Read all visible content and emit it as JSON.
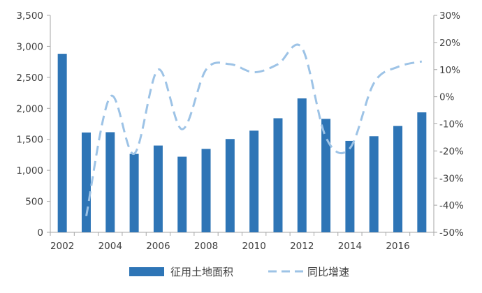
{
  "chart_data": {
    "type": "bar",
    "title": "",
    "categories": [
      "2002",
      "2003",
      "2004",
      "2005",
      "2006",
      "2007",
      "2008",
      "2009",
      "2010",
      "2011",
      "2012",
      "2013",
      "2014",
      "2015",
      "2016",
      "2017"
    ],
    "x_tick_labels": [
      "2002",
      "2004",
      "2006",
      "2008",
      "2010",
      "2012",
      "2014",
      "2016"
    ],
    "series": [
      {
        "name": "征用土地面积",
        "type": "bar",
        "axis": "left",
        "color": "#2e75b6",
        "values": [
          2880,
          1610,
          1615,
          1265,
          1400,
          1220,
          1345,
          1505,
          1640,
          1840,
          2160,
          1830,
          1475,
          1550,
          1715,
          1935
        ]
      },
      {
        "name": "同比增速",
        "type": "line",
        "line_style": "dashed",
        "axis": "right",
        "color": "#9dc3e6",
        "values": [
          null,
          -44,
          0,
          -21,
          10,
          -12,
          10,
          12,
          9,
          12,
          18,
          -15,
          -19,
          5,
          11,
          13
        ]
      }
    ],
    "y_left": {
      "min": 0,
      "max": 3500,
      "step": 500,
      "tick_labels": [
        "0",
        "500",
        "1,000",
        "1,500",
        "2,000",
        "2,500",
        "3,000",
        "3,500"
      ]
    },
    "y_right": {
      "min": -50,
      "max": 30,
      "step": 10,
      "tick_labels": [
        "-50%",
        "-40%",
        "-30%",
        "-20%",
        "-10%",
        "0%",
        "10%",
        "20%",
        "30%"
      ]
    },
    "legend_position": "bottom-center",
    "grid": false
  }
}
